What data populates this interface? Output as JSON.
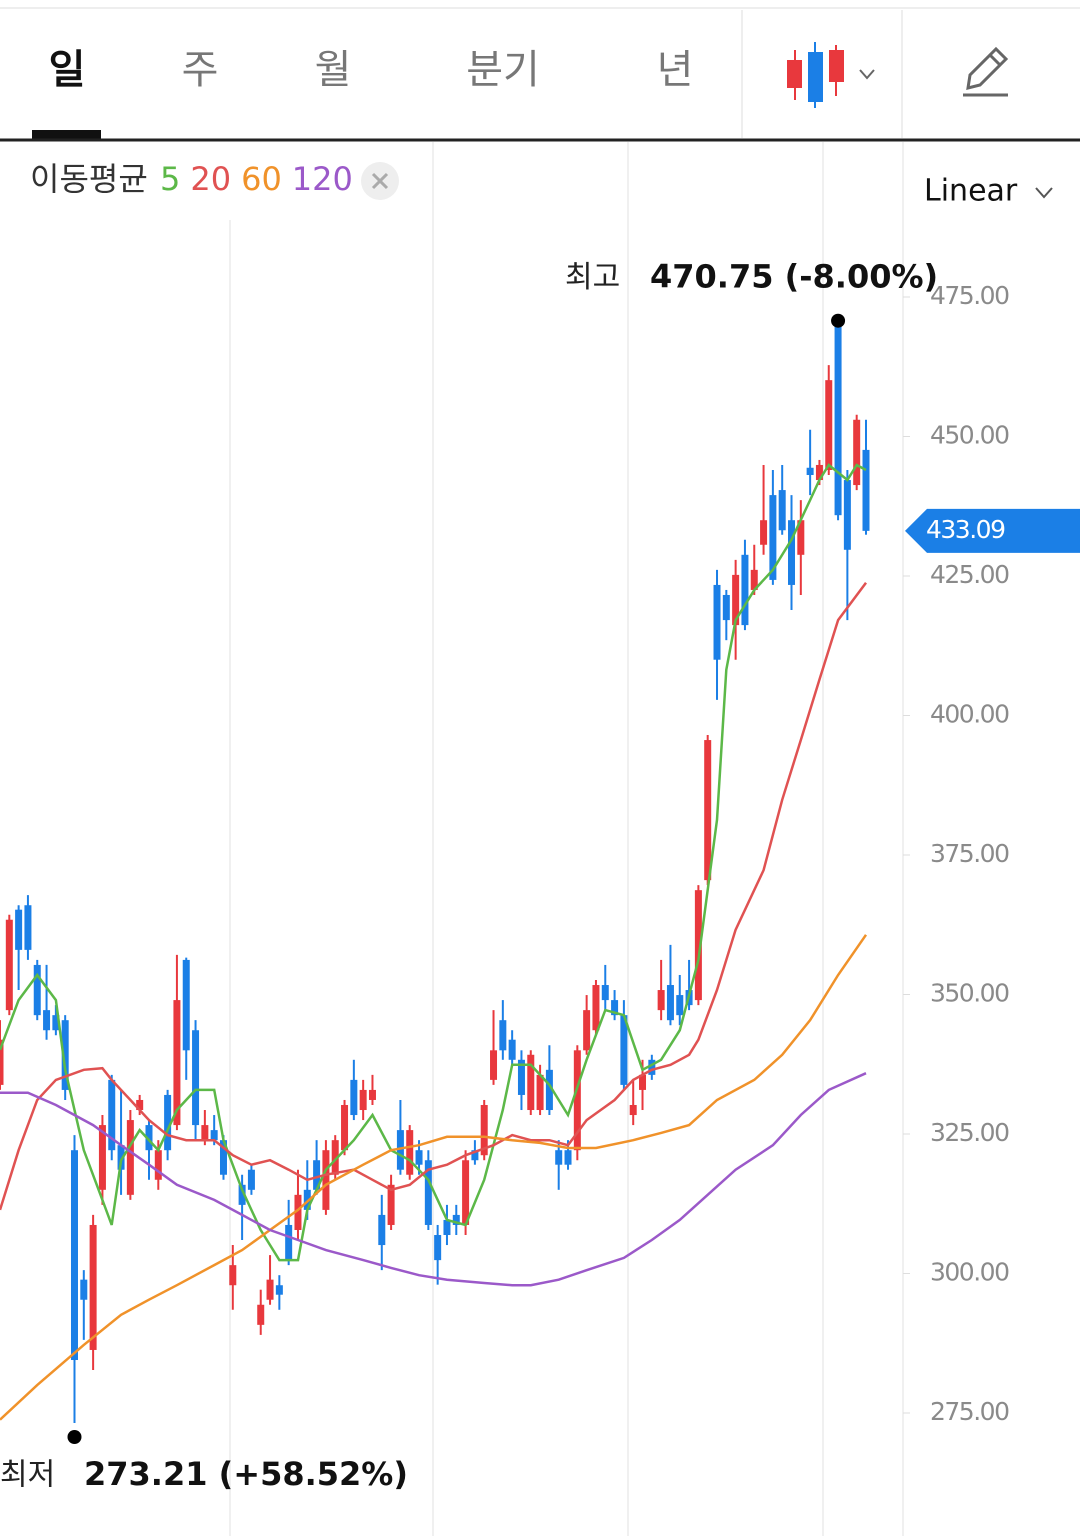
{
  "tabs": [
    "일",
    "주",
    "월",
    "분기",
    "년"
  ],
  "chart_data": {
    "type": "candlestick",
    "legend_title": "이동평균",
    "scale": "Linear",
    "up_color": "#e8383d",
    "down_color": "#1b7fe6",
    "xlim": [
      0,
      93
    ],
    "ylim": [
      252.96,
      488.8
    ],
    "yticks": [
      {
        "value": 275,
        "label": "275.00"
      },
      {
        "value": 300,
        "label": "300.00"
      },
      {
        "value": 325,
        "label": "325.00"
      },
      {
        "value": 350,
        "label": "350.00"
      },
      {
        "value": 375,
        "label": "375.00"
      },
      {
        "value": 400,
        "label": "400.00"
      },
      {
        "value": 425,
        "label": "425.00"
      },
      {
        "value": 450,
        "label": "450.00"
      },
      {
        "value": 475,
        "label": "475.00"
      }
    ],
    "open": [
      333.8,
      347.2,
      365.2,
      366.0,
      355.3,
      347.2,
      346.3,
      345.4,
      322.1,
      298.9,
      286.3,
      315.0,
      334.7,
      323.0,
      314.1,
      329.3,
      326.6,
      316.8,
      332.0,
      326.6,
      356.2,
      343.6,
      323.9,
      325.7,
      323.9,
      297.9,
      315.9,
      318.6,
      290.8,
      295.3,
      297.9,
      308.7,
      307.8,
      315.0,
      320.3,
      311.4,
      317.7,
      322.1,
      334.7,
      329.3,
      331.1,
      310.5,
      308.7,
      325.7,
      317.7,
      322.1,
      320.3,
      306.9,
      309.6,
      310.5,
      308.7,
      322.1,
      321.2,
      334.7,
      345.4,
      341.9,
      338.3,
      329.3,
      329.3,
      336.5,
      322.1,
      322.1,
      322.1,
      340.0,
      343.6,
      351.7,
      349.0,
      346.3,
      328.4,
      332.9,
      338.3,
      347.2,
      351.7,
      349.9,
      350.8,
      349.0,
      370.5,
      423.4,
      421.6,
      416.2,
      428.8,
      422.5,
      430.6,
      439.5,
      440.4,
      435.0,
      428.8,
      444.4,
      442.2,
      444.0,
      470.9,
      442.2,
      441.3,
      447.6
    ],
    "high": [
      345.4,
      364.3,
      366.0,
      367.8,
      356.2,
      355.3,
      348.1,
      346.3,
      324.8,
      300.6,
      310.5,
      328.4,
      335.6,
      332.9,
      329.3,
      332.0,
      327.5,
      323.9,
      332.9,
      357.1,
      356.6,
      345.4,
      329.3,
      328.4,
      324.8,
      305.1,
      317.7,
      319.5,
      297.1,
      303.3,
      299.7,
      313.2,
      318.6,
      320.3,
      323.9,
      323.9,
      324.8,
      331.1,
      338.3,
      334.7,
      335.6,
      314.1,
      317.7,
      331.1,
      326.6,
      323.9,
      322.1,
      308.7,
      312.3,
      312.3,
      322.1,
      323.9,
      331.1,
      347.2,
      349.0,
      343.6,
      340.0,
      340.0,
      337.4,
      340.9,
      323.9,
      323.9,
      340.9,
      349.9,
      352.6,
      355.3,
      350.8,
      349.0,
      334.7,
      338.3,
      339.2,
      356.2,
      358.9,
      353.5,
      356.2,
      369.6,
      396.5,
      426.1,
      422.5,
      427.9,
      431.5,
      430.6,
      444.9,
      444.0,
      444.9,
      439.5,
      438.6,
      451.2,
      445.8,
      462.8,
      470.75,
      444.0,
      453.9,
      453.0
    ],
    "low": [
      332.9,
      346.3,
      350.8,
      356.2,
      345.4,
      341.9,
      342.7,
      331.1,
      273.21,
      288.1,
      282.7,
      312.3,
      320.3,
      314.1,
      313.2,
      328.4,
      316.8,
      315.0,
      320.3,
      325.7,
      334.7,
      323.9,
      323.0,
      323.0,
      316.8,
      293.5,
      306.0,
      314.1,
      289.0,
      294.4,
      293.5,
      301.5,
      306.0,
      309.6,
      314.1,
      310.5,
      316.8,
      321.2,
      327.5,
      327.5,
      330.2,
      300.6,
      307.8,
      317.7,
      316.8,
      317.7,
      307.8,
      298.0,
      305.1,
      306.9,
      306.9,
      319.5,
      320.3,
      333.8,
      338.3,
      337.4,
      329.3,
      328.4,
      328.4,
      328.4,
      315.0,
      318.6,
      320.3,
      339.2,
      342.7,
      347.2,
      345.4,
      332.9,
      326.6,
      329.3,
      334.7,
      345.4,
      344.5,
      344.5,
      347.2,
      348.1,
      369.6,
      402.8,
      413.5,
      410.0,
      415.3,
      421.6,
      428.8,
      423.4,
      432.4,
      418.9,
      421.6,
      439.5,
      441.3,
      443.1,
      435.0,
      417.1,
      440.4,
      432.4
    ],
    "close": [
      341.9,
      363.4,
      358.0,
      358.0,
      346.3,
      343.6,
      343.6,
      332.9,
      284.5,
      295.3,
      308.7,
      326.6,
      322.1,
      318.6,
      327.5,
      331.1,
      322.1,
      322.1,
      322.1,
      349.0,
      340.0,
      326.6,
      326.6,
      323.9,
      317.7,
      301.5,
      312.3,
      315.0,
      294.4,
      298.9,
      296.2,
      302.4,
      314.1,
      311.4,
      315.0,
      322.1,
      323.9,
      330.2,
      328.4,
      332.9,
      332.9,
      305.1,
      315.9,
      318.6,
      325.7,
      319.5,
      308.7,
      302.4,
      306.9,
      308.7,
      320.3,
      320.3,
      330.2,
      340.0,
      340.0,
      338.3,
      332.0,
      339.2,
      335.6,
      329.3,
      319.5,
      319.5,
      340.0,
      347.2,
      351.7,
      349.0,
      346.3,
      333.8,
      330.2,
      335.6,
      335.6,
      350.8,
      345.4,
      346.3,
      348.1,
      368.7,
      395.6,
      410.0,
      417.1,
      425.2,
      416.2,
      426.1,
      435.0,
      424.3,
      433.2,
      423.4,
      435.0,
      443.1,
      444.9,
      460.1,
      435.9,
      429.7,
      453.0,
      433.09
    ],
    "moving_averages": [
      {
        "name": "5",
        "color": "#5cb848",
        "x": [
          0,
          2,
          4,
          6,
          7,
          9,
          11,
          12,
          13,
          15,
          17,
          19,
          21,
          23,
          24,
          26,
          28,
          30,
          32,
          33,
          35,
          38,
          40,
          42,
          44,
          46,
          48,
          50,
          52,
          54,
          55,
          57,
          59,
          61,
          63,
          65,
          67,
          69,
          71,
          73,
          75,
          77,
          78,
          79,
          81,
          83,
          85,
          87,
          88,
          89,
          91,
          92,
          93
        ],
        "values": [
          340.1,
          349.0,
          353.5,
          349.0,
          336.5,
          322.1,
          313.2,
          308.7,
          320.3,
          325.7,
          322.1,
          329.3,
          332.9,
          332.9,
          323.9,
          315.0,
          307.8,
          302.4,
          302.4,
          311.4,
          318.6,
          323.9,
          328.4,
          322.1,
          320.3,
          316.8,
          309.6,
          308.7,
          316.8,
          329.3,
          337.4,
          337.4,
          333.8,
          328.4,
          338.3,
          347.2,
          346.3,
          336.5,
          338.3,
          343.6,
          356.2,
          381.3,
          408.2,
          417.1,
          422.5,
          426.1,
          431.5,
          438.6,
          442.2,
          444.9,
          442.2,
          444.9,
          444.0
        ]
      },
      {
        "name": "20",
        "color": "#e05252",
        "x": [
          0,
          2,
          4,
          6,
          9,
          11,
          12,
          14,
          16,
          18,
          20,
          23,
          25,
          27,
          29,
          31,
          33,
          35,
          38,
          40,
          42,
          44,
          46,
          48,
          50,
          53,
          55,
          57,
          59,
          61,
          63,
          66,
          68,
          70,
          72,
          74,
          75,
          77,
          79,
          82,
          84,
          86,
          88,
          90,
          93
        ],
        "values": [
          311.4,
          322.1,
          331.1,
          334.7,
          336.5,
          336.8,
          334.7,
          331.1,
          327.5,
          324.8,
          323.9,
          323.9,
          321.2,
          319.5,
          320.3,
          318.6,
          316.8,
          317.7,
          318.6,
          316.8,
          315.0,
          315.9,
          318.6,
          319.5,
          321.2,
          323.0,
          324.8,
          323.9,
          323.9,
          323.0,
          327.5,
          331.1,
          334.7,
          336.5,
          337.4,
          339.2,
          341.9,
          350.8,
          361.6,
          372.3,
          384.9,
          395.6,
          406.4,
          417.1,
          423.8
        ]
      },
      {
        "name": "60",
        "color": "#f0922a",
        "x": [
          0,
          4,
          9,
          13,
          16,
          19,
          23,
          26,
          29,
          32,
          35,
          39,
          42,
          45,
          48,
          52,
          55,
          58,
          61,
          64,
          68,
          71,
          74,
          77,
          81,
          84,
          87,
          90,
          93
        ],
        "values": [
          273.8,
          280.0,
          287.2,
          292.6,
          295.3,
          297.9,
          301.5,
          304.2,
          307.8,
          311.4,
          315.9,
          319.5,
          322.1,
          323.0,
          324.5,
          324.5,
          323.9,
          323.4,
          322.5,
          322.5,
          323.9,
          325.2,
          326.6,
          331.1,
          334.7,
          339.2,
          345.4,
          353.5,
          360.7
        ]
      },
      {
        "name": "120",
        "color": "#9b59c9",
        "x": [
          0,
          3,
          6,
          10,
          13,
          16,
          19,
          23,
          26,
          29,
          32,
          35,
          39,
          42,
          45,
          48,
          52,
          55,
          57,
          60,
          63,
          67,
          70,
          73,
          76,
          79,
          83,
          86,
          89,
          93
        ],
        "values": [
          332.4,
          332.4,
          330.2,
          326.6,
          323.0,
          319.5,
          315.9,
          313.2,
          310.5,
          307.8,
          306.0,
          304.2,
          302.4,
          301.0,
          299.7,
          298.9,
          298.3,
          297.9,
          297.9,
          298.9,
          300.6,
          302.8,
          306.0,
          309.6,
          314.1,
          318.6,
          323.0,
          328.4,
          332.9,
          335.9
        ]
      }
    ],
    "high_note": {
      "label": "최고",
      "text": "470.75 (-8.00%)",
      "index": 90,
      "value": 470.75
    },
    "low_note": {
      "label": "최저",
      "text": "273.21 (+58.52%)",
      "index": 8,
      "value": 273.21
    }
  }
}
